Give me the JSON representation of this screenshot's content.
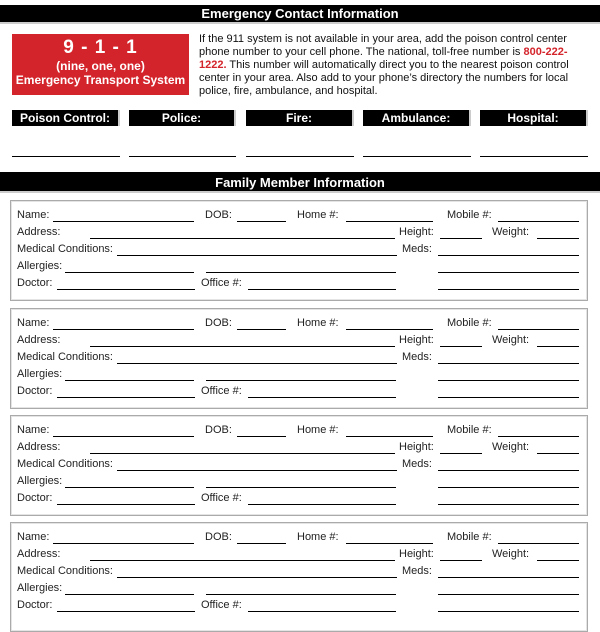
{
  "emergency": {
    "title": "Emergency Contact Information",
    "badge": {
      "number": "9 - 1 - 1",
      "spelled": "(nine, one, one)",
      "system": "Emergency Transport System"
    },
    "intro_before": "If the 911 system is not available in your area, add the poison control center phone number to your cell phone. The national, toll-free number is ",
    "phone": "800-222-1222.",
    "intro_after": " This number will automatically direct you to the nearest poison control center in your area. Also add to your phone’s directory the numbers for local police, fire, ambulance, and hospital.",
    "contacts": [
      "Poison Control:",
      "Police:",
      "Fire:",
      "Ambulance:",
      "Hospital:"
    ]
  },
  "family": {
    "title": "Family Member Information",
    "members": [
      {
        "name": "Name:",
        "dob": "DOB:",
        "home": "Home #:",
        "mobile": "Mobile #:",
        "address": "Address:",
        "height": "Height:",
        "weight": "Weight:",
        "medical": "Medical Conditions:",
        "meds": "Meds:",
        "allergies": "Allergies:",
        "doctor": "Doctor:",
        "office": "Office #:"
      },
      {
        "name": "Name:",
        "dob": "DOB:",
        "home": "Home #:",
        "mobile": "Mobile #:",
        "address": "Address:",
        "height": "Height:",
        "weight": "Weight:",
        "medical": "Medical Conditions:",
        "meds": "Meds:",
        "allergies": "Allergies:",
        "doctor": "Doctor:",
        "office": "Office #:"
      },
      {
        "name": "Name:",
        "dob": "DOB:",
        "home": "Home #:",
        "mobile": "Mobile #:",
        "address": "Address:",
        "height": "Height:",
        "weight": "Weight:",
        "medical": "Medical Conditions:",
        "meds": "Meds:",
        "allergies": "Allergies:",
        "doctor": "Doctor:",
        "office": "Office #:"
      },
      {
        "name": "Name:",
        "dob": "DOB:",
        "home": "Home #:",
        "mobile": "Mobile #:",
        "address": "Address:",
        "height": "Height:",
        "weight": "Weight:",
        "medical": "Medical Conditions:",
        "meds": "Meds:",
        "allergies": "Allergies:",
        "doctor": "Doctor:",
        "office": "Office #:"
      }
    ]
  },
  "colors": {
    "accent": "#d4242b",
    "bar": "#000000"
  }
}
